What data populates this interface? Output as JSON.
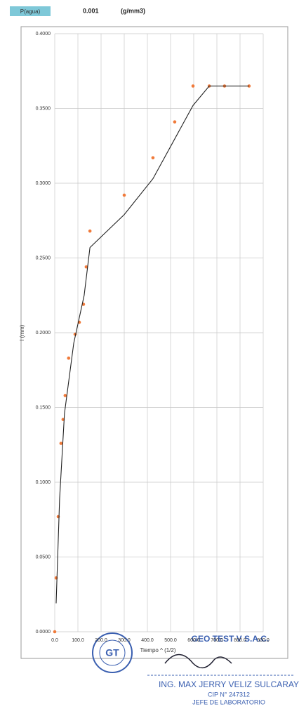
{
  "header": {
    "label": "P(agua)",
    "value": "0.001",
    "unit": "(g/mm3)"
  },
  "chart_data": {
    "type": "scatter-line",
    "x_label": "Tiempo ^ (1/2)",
    "y_label": "l (mm)",
    "xlim": [
      0,
      900
    ],
    "ylim": [
      0,
      0.4
    ],
    "xticks": [
      {
        "value": 0,
        "label": "0.0"
      },
      {
        "value": 100,
        "label": "100.0"
      },
      {
        "value": 200,
        "label": "200.0"
      },
      {
        "value": 300,
        "label": "300.0"
      },
      {
        "value": 400,
        "label": "400.0"
      },
      {
        "value": 500,
        "label": "500.0"
      },
      {
        "value": 600,
        "label": "600.0"
      },
      {
        "value": 700,
        "label": "700.0"
      },
      {
        "value": 800,
        "label": "800.0"
      },
      {
        "value": 900,
        "label": "900.0"
      }
    ],
    "yticks": [
      {
        "value": 0,
        "label": "0.0000"
      },
      {
        "value": 0.05,
        "label": "0.0500"
      },
      {
        "value": 0.1,
        "label": "0.1000"
      },
      {
        "value": 0.15,
        "label": "0.1500"
      },
      {
        "value": 0.2,
        "label": "0.2000"
      },
      {
        "value": 0.25,
        "label": "0.2500"
      },
      {
        "value": 0.3,
        "label": "0.3000"
      },
      {
        "value": 0.35,
        "label": "0.3500"
      },
      {
        "value": 0.4,
        "label": "0.4000"
      }
    ],
    "grid": true,
    "series": [
      {
        "type": "scatter",
        "color": "#f07a3a",
        "x": [
          0,
          6,
          15,
          27,
          36,
          45,
          60,
          88,
          106,
          124,
          136,
          152,
          300,
          424,
          518,
          597,
          667,
          733,
          839
        ],
        "values": [
          0,
          0.036,
          0.077,
          0.126,
          0.142,
          0.158,
          0.183,
          0.199,
          0.207,
          0.219,
          0.244,
          0.268,
          0.292,
          0.317,
          0.341,
          0.365,
          0.365,
          0.365,
          0.365
        ]
      },
      {
        "type": "line",
        "color": "#222222",
        "x": [
          6,
          21,
          42,
          82,
          127,
          152,
          300,
          424,
          597,
          667,
          839
        ],
        "values": [
          0.019,
          0.089,
          0.146,
          0.193,
          0.225,
          0.257,
          0.279,
          0.303,
          0.352,
          0.365,
          0.365
        ]
      }
    ]
  },
  "footer": {
    "company": "GEO TEST V S.A.C.",
    "engineer": "ING. MAX JERRY VELIZ SULCARAY",
    "cip": "CIP N° 247312",
    "role": "JEFE DE LABORATORIO"
  }
}
